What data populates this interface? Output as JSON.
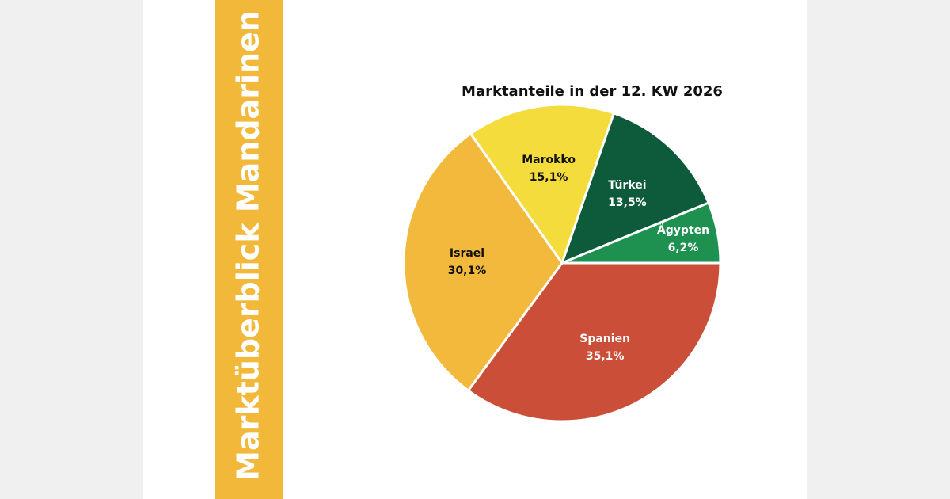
{
  "sidebar": {
    "title": "Marktüberblick Mandarinen"
  },
  "chart_data": {
    "type": "pie",
    "title": "Marktanteile in der 12. KW 2026",
    "categories": [
      "Spanien",
      "Israel",
      "Marokko",
      "Türkei",
      "Ägypten"
    ],
    "values": [
      35.1,
      30.1,
      15.1,
      13.5,
      6.2
    ],
    "value_labels": [
      "35,1%",
      "30,1%",
      "15,1%",
      "13,5%",
      "6,2%"
    ],
    "colors": [
      "#cb4f38",
      "#f3b93c",
      "#f4dc3c",
      "#0d5b3a",
      "#1e9150"
    ]
  }
}
